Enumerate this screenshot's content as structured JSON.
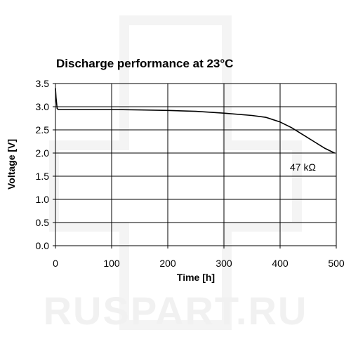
{
  "watermark": {
    "text": "RUSPART.RU",
    "color": "#f1f1f1"
  },
  "chart_data": {
    "type": "line",
    "title": "Discharge performance at 23°C",
    "xlabel": "Time [h]",
    "ylabel": "Voltage [V]",
    "xlim": [
      0,
      500
    ],
    "ylim": [
      0.0,
      3.5
    ],
    "xticks": [
      0,
      100,
      200,
      300,
      400,
      500
    ],
    "xtick_labels": [
      "0",
      "100",
      "200",
      "300",
      "400",
      "500"
    ],
    "yticks": [
      0.0,
      0.5,
      1.0,
      1.5,
      2.0,
      2.5,
      3.0,
      3.5
    ],
    "ytick_labels": [
      "0.0",
      "0.5",
      "1.0",
      "1.5",
      "2.0",
      "2.5",
      "3.0",
      "3.5"
    ],
    "grid": true,
    "line_color": "#000000",
    "series": [
      {
        "name": "47 kΩ",
        "x": [
          0,
          1,
          3,
          5,
          20,
          50,
          100,
          150,
          200,
          250,
          300,
          350,
          375,
          400,
          420,
          440,
          460,
          480,
          497
        ],
        "y": [
          3.4,
          3.2,
          2.96,
          2.94,
          2.94,
          2.94,
          2.94,
          2.93,
          2.92,
          2.9,
          2.86,
          2.81,
          2.77,
          2.67,
          2.55,
          2.4,
          2.25,
          2.1,
          2.0
        ]
      }
    ],
    "annotations": [
      {
        "text": "47 kΩ",
        "x": 460,
        "y": 1.7
      }
    ]
  }
}
